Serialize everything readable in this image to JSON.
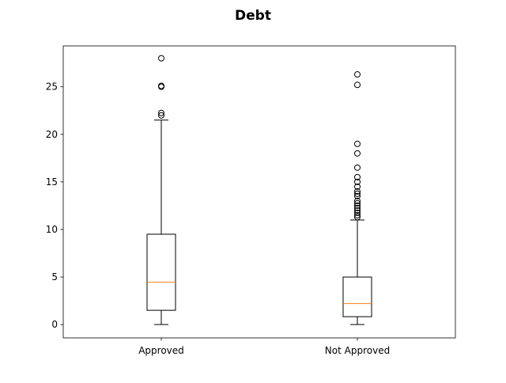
{
  "chart_data": {
    "type": "box",
    "title": "Debt",
    "xlabel": "",
    "ylabel": "",
    "categories": [
      "Approved",
      "Not Approved"
    ],
    "ylim": [
      -1.4,
      29.3
    ],
    "yticks": [
      0,
      5,
      10,
      15,
      20,
      25
    ],
    "grid": false,
    "boxes": [
      {
        "category": "Approved",
        "whisker_low": 0,
        "q1": 1.5,
        "median": 4.46,
        "q3": 9.5,
        "whisker_high": 21.5,
        "outliers": [
          22.0,
          22.25,
          25.0,
          25.1,
          28.0
        ]
      },
      {
        "category": "Not Approved",
        "whisker_low": 0,
        "q1": 0.83,
        "median": 2.21,
        "q3": 5.0,
        "whisker_high": 11.0,
        "outliers": [
          11.3,
          11.5,
          11.75,
          12.0,
          12.25,
          12.5,
          12.75,
          13.0,
          13.5,
          13.75,
          14.0,
          14.5,
          15.0,
          15.5,
          16.5,
          18.0,
          19.0,
          25.2,
          26.3
        ]
      }
    ],
    "colors": {
      "box": "#000000",
      "median": "#ff7f0e",
      "outlier": "#000000",
      "background": "#ffffff"
    }
  }
}
